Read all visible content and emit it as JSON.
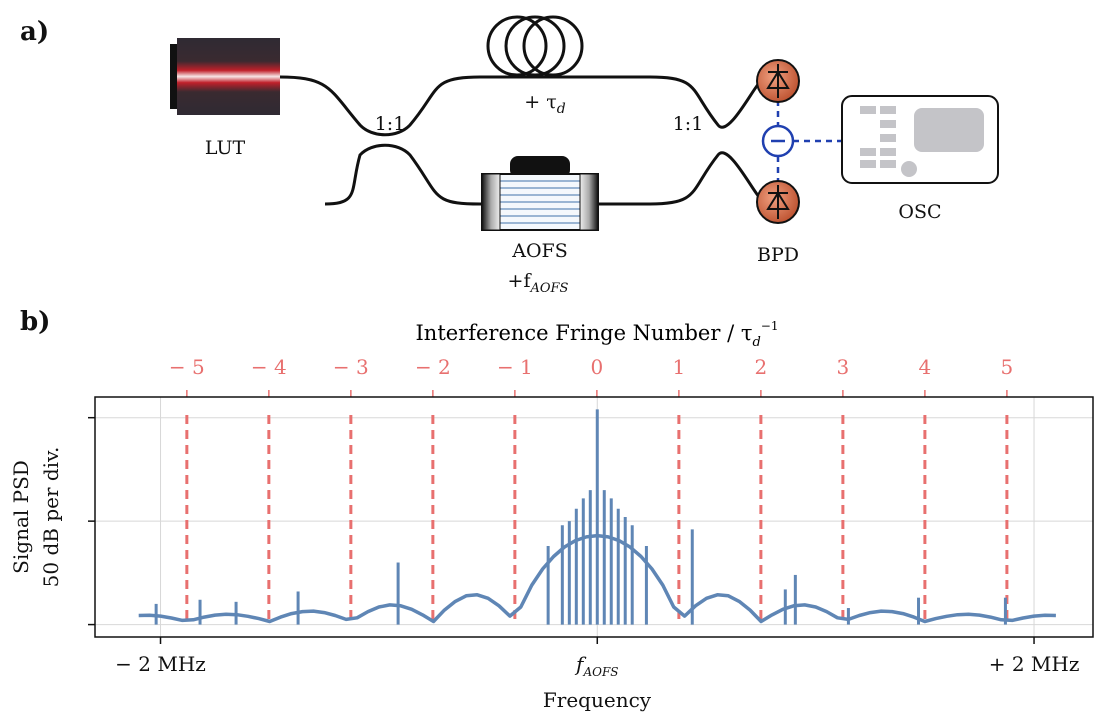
{
  "panel_labels": [
    "a)",
    "b)"
  ],
  "diagram": {
    "lut": "LUT",
    "couplers": [
      "1:1",
      "1:1"
    ],
    "delay": {
      "text": "+ τ",
      "sub": "d"
    },
    "aofs": "AOFS",
    "aofs_shift": {
      "text": "+f",
      "sub": "AOFS"
    },
    "bpd": "BPD",
    "osc": "OSC"
  },
  "chart_data": {
    "type": "line",
    "color": "#5f86b5",
    "fringe_color": "#e8706f",
    "grid": true,
    "x2label": {
      "text": "Interference Fringe Number / τ",
      "sub": "d",
      "sup": "−1"
    },
    "xlabel": "Frequency",
    "ylabel": [
      "Signal PSD",
      "50 dB per div."
    ],
    "xlim": [
      -2.3,
      2.27
    ],
    "xticks": [
      {
        "value": -2,
        "label": "− 2 MHz"
      },
      {
        "value": 0,
        "label": "f",
        "subscript": "AOFS"
      },
      {
        "value": 2,
        "label": "+ 2 MHz"
      }
    ],
    "x2lim": [
      -6.12,
      6.05
    ],
    "x2ticks": [
      {
        "value": -5,
        "label": "− 5"
      },
      {
        "value": -4,
        "label": "− 4"
      },
      {
        "value": -3,
        "label": "− 3"
      },
      {
        "value": -2,
        "label": "− 2"
      },
      {
        "value": -1,
        "label": "− 1"
      },
      0,
      1,
      2,
      3,
      4,
      5
    ],
    "ylim": [
      -6,
      110
    ],
    "yticks": [
      0,
      50,
      100
    ],
    "x": [
      -2.1,
      -2.05,
      -2.0,
      -1.95,
      -1.9,
      -1.85,
      -1.8,
      -1.75,
      -1.7,
      -1.65,
      -1.6,
      -1.55,
      -1.5,
      -1.45,
      -1.4,
      -1.35,
      -1.3,
      -1.25,
      -1.2,
      -1.15,
      -1.1,
      -1.05,
      -1.0,
      -0.95,
      -0.9,
      -0.85,
      -0.8,
      -0.75,
      -0.7,
      -0.65,
      -0.6,
      -0.55,
      -0.5,
      -0.45,
      -0.4,
      -0.35,
      -0.3,
      -0.25,
      -0.2,
      -0.15,
      -0.1,
      -0.05,
      0,
      0.05,
      0.1,
      0.15,
      0.2,
      0.25,
      0.3,
      0.35,
      0.4,
      0.45,
      0.5,
      0.55,
      0.6,
      0.65,
      0.7,
      0.75,
      0.8,
      0.85,
      0.9,
      0.95,
      1.0,
      1.05,
      1.1,
      1.15,
      1.2,
      1.25,
      1.3,
      1.35,
      1.4,
      1.45,
      1.5,
      1.55,
      1.6,
      1.65,
      1.7,
      1.75,
      1.8,
      1.85,
      1.9,
      1.95,
      2.0,
      2.05,
      2.1
    ],
    "values": [
      4.4,
      4.5,
      4.1,
      3.2,
      2.0,
      2.3,
      3.6,
      4.6,
      5.0,
      4.8,
      4.0,
      2.9,
      1.5,
      3.6,
      5.3,
      6.3,
      6.5,
      5.8,
      4.4,
      2.5,
      3.3,
      6.3,
      8.5,
      9.5,
      9.1,
      7.4,
      4.7,
      1.5,
      7.0,
      11.2,
      13.9,
      14.4,
      12.7,
      9.1,
      4.1,
      8.5,
      19.1,
      26.9,
      32.9,
      37.5,
      40.6,
      42.4,
      43,
      42.4,
      40.6,
      37.5,
      32.9,
      26.9,
      19.1,
      8.5,
      4.1,
      9.1,
      12.7,
      14.4,
      13.9,
      11.2,
      7.0,
      1.5,
      4.7,
      7.4,
      9.1,
      9.5,
      8.5,
      6.3,
      3.3,
      2.5,
      4.4,
      5.8,
      6.5,
      6.3,
      5.3,
      3.6,
      1.5,
      2.9,
      4.0,
      4.8,
      5.0,
      4.6,
      3.6,
      2.3,
      2.0,
      3.2,
      4.1,
      4.5,
      4.4
    ],
    "spikes": {
      "x": [
        0,
        -0.032,
        0.032,
        -0.064,
        0.064,
        -0.096,
        0.096,
        -0.128,
        0.128,
        -0.16,
        0.16,
        -0.225,
        0.225,
        0.435,
        -0.912,
        0.907,
        0.861,
        -1.37,
        -1.654,
        -1.819,
        -2.02,
        1.471,
        1.869,
        1.15
      ],
      "values": [
        104,
        65,
        65,
        61,
        61,
        56,
        56,
        50,
        52,
        48,
        48,
        38,
        38,
        46,
        30,
        24,
        17,
        16,
        11,
        12,
        10,
        13,
        13,
        8
      ]
    }
  }
}
